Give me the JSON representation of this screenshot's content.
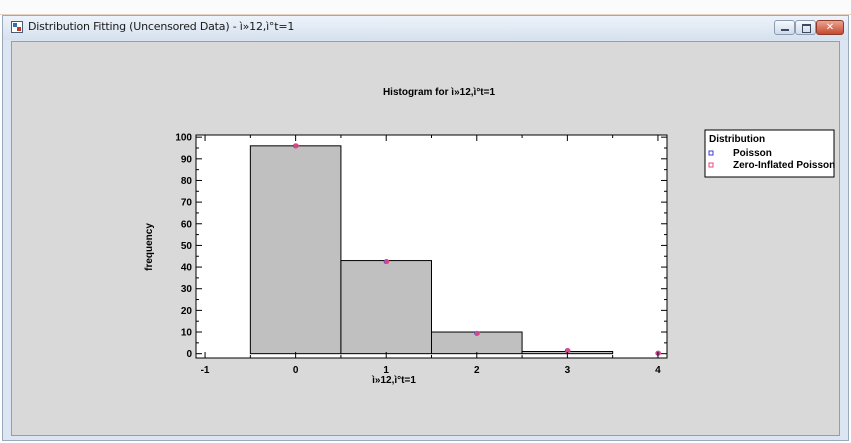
{
  "window": {
    "title": "Distribution Fitting (Uncensored Data) - ì»12,ì°t=1"
  },
  "chart_data": {
    "type": "bar",
    "title": "Histogram for ì»12,ì°t=1",
    "xlabel": "ì»12,ì°t=1",
    "ylabel": "frequency",
    "bin_width": 1,
    "xlim": [
      -1.1,
      4.1
    ],
    "ylim": [
      -2,
      101
    ],
    "x_ticks": [
      -1,
      0,
      1,
      2,
      3,
      4
    ],
    "y_ticks": [
      0,
      10,
      20,
      30,
      40,
      50,
      60,
      70,
      80,
      90,
      100
    ],
    "categories": [
      "0",
      "1",
      "2",
      "3"
    ],
    "bin_centers": [
      0,
      1,
      2,
      3
    ],
    "values": [
      96,
      43,
      10,
      1
    ],
    "series": [
      {
        "name": "Poisson",
        "color": "#3b3bd6",
        "x": [
          0,
          1,
          2,
          3,
          4
        ],
        "y": [
          96,
          42.5,
          9.4,
          1.4,
          0.2
        ]
      },
      {
        "name": "Zero-Inflated Poisson",
        "color": "#ea4a7a",
        "x": [
          0,
          1,
          2,
          3,
          4
        ],
        "y": [
          96,
          42.5,
          9.4,
          1.4,
          0.2
        ]
      }
    ],
    "legend": {
      "title": "Distribution",
      "position": "right"
    },
    "grid": false
  }
}
